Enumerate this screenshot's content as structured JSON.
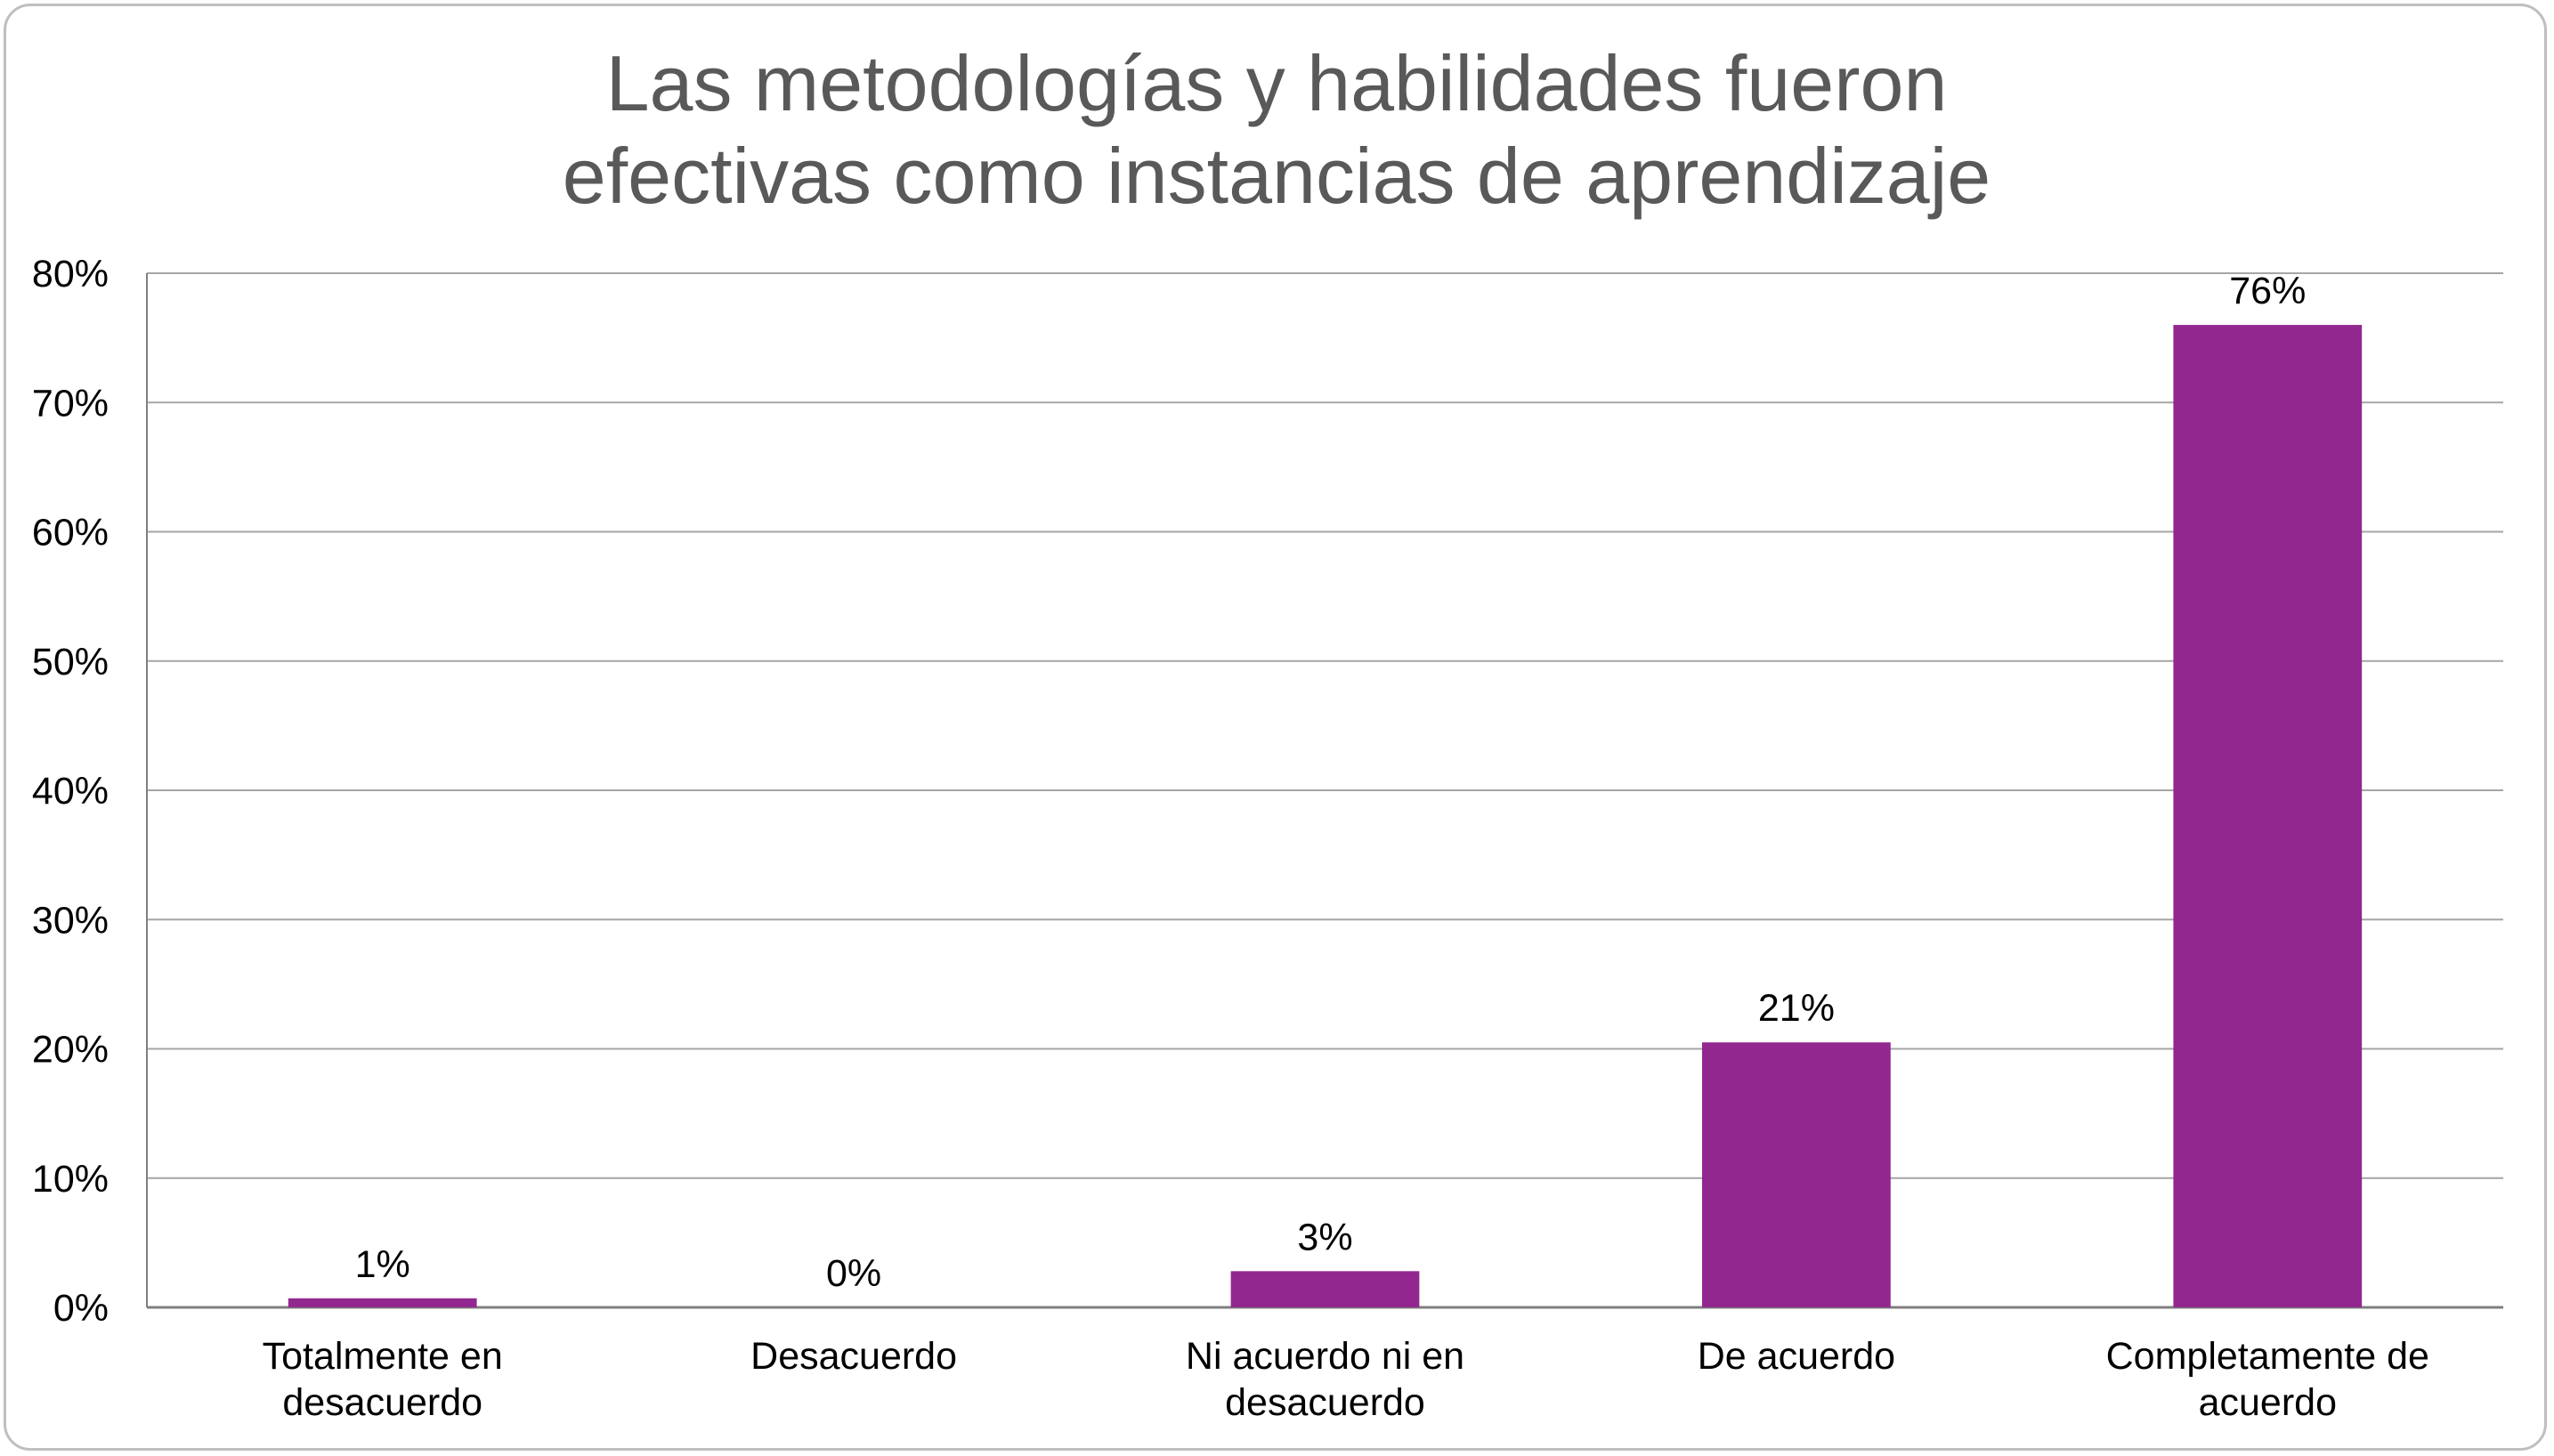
{
  "chart_data": {
    "type": "bar",
    "title_lines": [
      "Las metodologías y habilidades fueron",
      "efectivas como instancias de aprendizaje"
    ],
    "categories": [
      [
        "Totalmente en",
        "desacuerdo"
      ],
      [
        "Desacuerdo"
      ],
      [
        "Ni acuerdo ni en",
        "desacuerdo"
      ],
      [
        "De acuerdo"
      ],
      [
        "Completamente de",
        "acuerdo"
      ]
    ],
    "values": [
      0.7,
      0,
      2.8,
      20.5,
      76
    ],
    "data_labels": [
      "1%",
      "0%",
      "3%",
      "21%",
      "76%"
    ],
    "ylim": [
      0,
      80
    ],
    "ytick_step": 10,
    "ytick_labels": [
      "0%",
      "10%",
      "20%",
      "30%",
      "40%",
      "50%",
      "60%",
      "70%",
      "80%"
    ],
    "grid": true,
    "legend": "none",
    "bar_color": "#92278F",
    "grid_color": "#a6a6a6"
  }
}
